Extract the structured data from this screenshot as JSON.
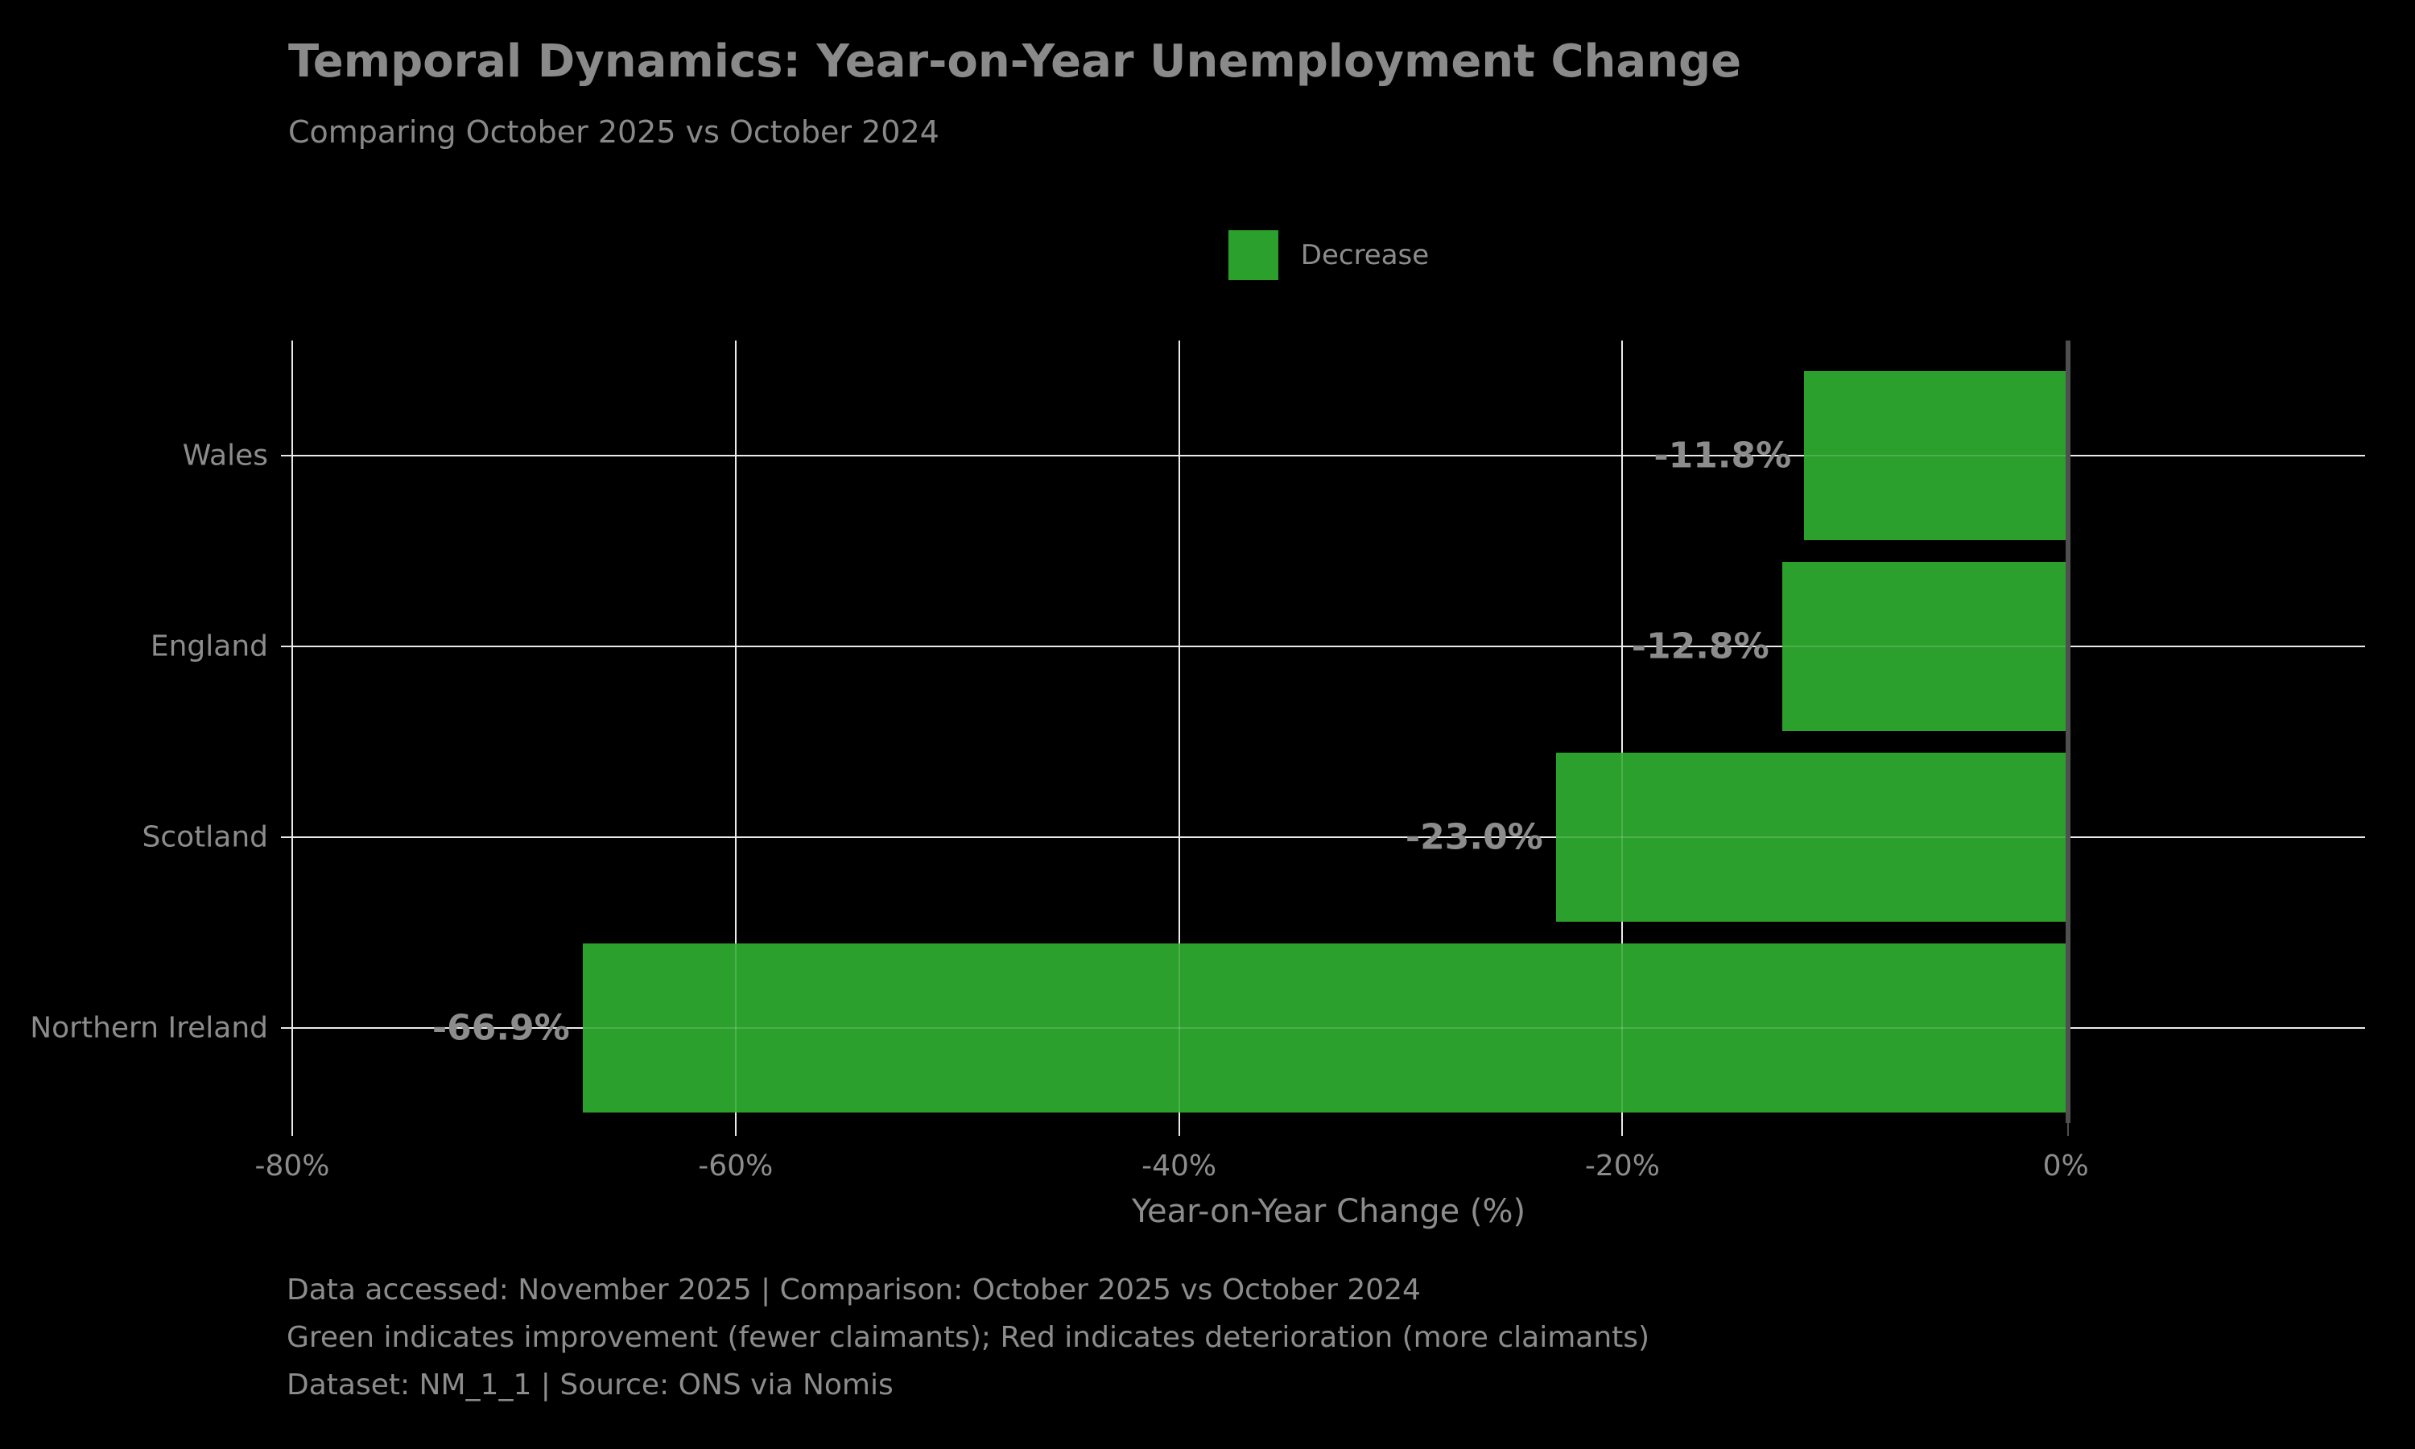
{
  "colors": {
    "background": "#000000",
    "bar_green": "#2ca02c",
    "grid_line": "#e8e8e8",
    "zero_line": "#4f4f4f",
    "text_gray": "#8c8c8c",
    "title_gray": "#8a8a8a"
  },
  "footer": {
    "line1": "Data accessed: November 2025 | Comparison: October 2025 vs October 2024",
    "line2": "Green indicates improvement (fewer claimants); Red indicates deterioration (more claimants)",
    "line3": "Dataset: NM_1_1 | Source: ONS via Nomis"
  },
  "chart_data": {
    "type": "bar",
    "orientation": "horizontal",
    "title": "Temporal Dynamics: Year-on-Year Unemployment Change",
    "subtitle": "Comparing October 2025 vs October 2024",
    "xlabel": "Year-on-Year Change (%)",
    "categories": [
      "Wales",
      "England",
      "Scotland",
      "Northern Ireland"
    ],
    "values": [
      -11.8,
      -12.8,
      -23.0,
      -66.9
    ],
    "value_labels": [
      "-11.8%",
      "-12.8%",
      "-23.0%",
      "-66.9%"
    ],
    "bar_color": "#2ca02c",
    "xlim": [
      -80,
      13.5
    ],
    "xticks": [
      -80,
      -60,
      -40,
      -20,
      0
    ],
    "xtick_labels": [
      "-80%",
      "-60%",
      "-40%",
      "-20%",
      "0%"
    ],
    "grid": true,
    "legend": {
      "position": "upper center",
      "entries": [
        {
          "label": "Decrease",
          "color": "#2ca02c"
        }
      ]
    }
  }
}
